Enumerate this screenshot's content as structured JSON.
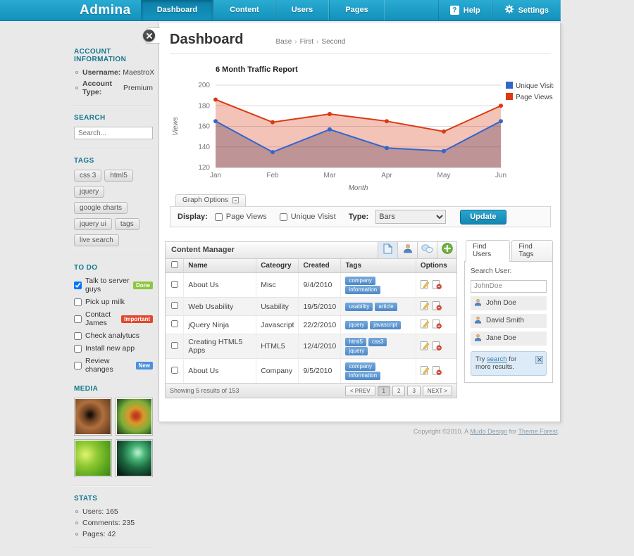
{
  "colors": {
    "navbar": "#1a9fc8",
    "accent": "#1286b2",
    "tag_pill": "#5a93d0",
    "badge_done": "#8dc63f",
    "badge_important": "#e2482f",
    "badge_new": "#4b8fde"
  },
  "navbar": {
    "logo": "Admina",
    "tabs": [
      {
        "label": "Dashboard",
        "active": true
      },
      {
        "label": "Content",
        "active": false
      },
      {
        "label": "Users",
        "active": false
      },
      {
        "label": "Pages",
        "active": false
      }
    ],
    "help": {
      "label": "Help",
      "icon": "?"
    },
    "settings": {
      "label": "Settings"
    }
  },
  "sidebar": {
    "account": {
      "heading": "ACCOUNT INFORMATION",
      "items": [
        {
          "label": "Username:",
          "value": "MaestroX"
        },
        {
          "label": "Account Type:",
          "value": "Premium"
        }
      ]
    },
    "search": {
      "heading": "SEARCH",
      "placeholder": "Search..."
    },
    "tags": {
      "heading": "TAGS",
      "items": [
        "css 3",
        "html5",
        "jquery",
        "google charts",
        "jquery ui",
        "tags",
        "live search"
      ]
    },
    "todo": {
      "heading": "TO DO",
      "items": [
        {
          "label": "Talk to server guys",
          "checked": true,
          "badge": "Done",
          "badge_color": "#8dc63f"
        },
        {
          "label": "Pick up milk",
          "checked": false,
          "badge": null,
          "badge_color": null
        },
        {
          "label": "Contact James",
          "checked": false,
          "badge": "Important",
          "badge_color": "#e2482f"
        },
        {
          "label": "Check analytucs",
          "checked": false,
          "badge": null,
          "badge_color": null
        },
        {
          "label": "Install new app",
          "checked": false,
          "badge": null,
          "badge_color": null
        },
        {
          "label": "Review changes",
          "checked": false,
          "badge": "New",
          "badge_color": "#4b8fde"
        }
      ]
    },
    "media": {
      "heading": "MEDIA",
      "items": [
        "fractal-orange-thumbnail",
        "fractal-flower-thumbnail",
        "green-abstract-thumbnail",
        "green-swirl-thumbnail"
      ]
    },
    "stats": {
      "heading": "STATS",
      "items": [
        "Users: 165",
        "Comments: 235",
        "Pages: 42"
      ]
    }
  },
  "main": {
    "title": "Dashboard",
    "breadcrumb": [
      "Base",
      "First",
      "Second"
    ],
    "breadcrumb_separator": "›"
  },
  "chart_data": {
    "type": "area",
    "title": "6 Month Traffic Report",
    "x": [
      "Jan",
      "Feb",
      "Mar",
      "Apr",
      "May",
      "Jun"
    ],
    "xlabel": "Month",
    "ylabel": "Views",
    "ylim": [
      120,
      200
    ],
    "yticks": [
      120,
      140,
      160,
      180,
      200
    ],
    "grid": true,
    "legend_position": "right",
    "series": [
      {
        "name": "Unique Visits",
        "color": "#3366cc",
        "values": [
          165,
          135,
          157,
          139,
          136,
          165
        ]
      },
      {
        "name": "Page Views",
        "color": "#dc3912",
        "values": [
          186,
          164,
          172,
          165,
          155,
          180
        ]
      }
    ]
  },
  "graph_options": {
    "tab_label": "Graph Options",
    "display_label": "Display:",
    "checkboxes": [
      {
        "label": "Page Views",
        "checked": false
      },
      {
        "label": "Unique Visist",
        "checked": false
      }
    ],
    "type_label": "Type:",
    "type_value": "Bars",
    "update_label": "Update"
  },
  "content_manager": {
    "title": "Content Manager",
    "toolbar_icons": [
      "document-icon",
      "user-icon",
      "comments-icon",
      "add-icon"
    ],
    "columns": [
      "Name",
      "Cateogry",
      "Created",
      "Tags",
      "Options"
    ],
    "rows": [
      {
        "name": "About Us",
        "category": "Misc",
        "created": "9/4/2010",
        "tags": [
          "company",
          "information"
        ]
      },
      {
        "name": "Web Usability",
        "category": "Usability",
        "created": "19/5/2010",
        "tags": [
          "usability",
          "article"
        ]
      },
      {
        "name": "jQuery Ninja",
        "category": "Javascript",
        "created": "22/2/2010",
        "tags": [
          "jquery",
          "javascript"
        ]
      },
      {
        "name": "Creating HTML5 Apps",
        "category": "HTML5",
        "created": "12/4/2010",
        "tags": [
          "html5",
          "css3",
          "jquery"
        ]
      },
      {
        "name": "About Us",
        "category": "Company",
        "created": "9/5/2010",
        "tags": [
          "company",
          "information"
        ]
      }
    ],
    "results_text": "Showing 5 results of 153",
    "pagination": [
      {
        "label": "< PREV",
        "active": false
      },
      {
        "label": "1",
        "active": true
      },
      {
        "label": "2",
        "active": false
      },
      {
        "label": "3",
        "active": false
      },
      {
        "label": "NEXT >",
        "active": false
      }
    ]
  },
  "find_users": {
    "tabs": [
      {
        "label": "Find Users",
        "active": true
      },
      {
        "label": "Find Tags",
        "active": false
      }
    ],
    "search_label": "Search User:",
    "search_value": "JohnDoe",
    "users": [
      "John Doe",
      "David Smith",
      "Jane Doe"
    ],
    "info": {
      "pre": "Try ",
      "link": "search",
      "post": " for more results."
    }
  },
  "footer": {
    "pre": "Copyright ©2010, A ",
    "link1": "Mudo Design",
    "mid": " for ",
    "link2": "Theme Forest",
    "post": "."
  }
}
